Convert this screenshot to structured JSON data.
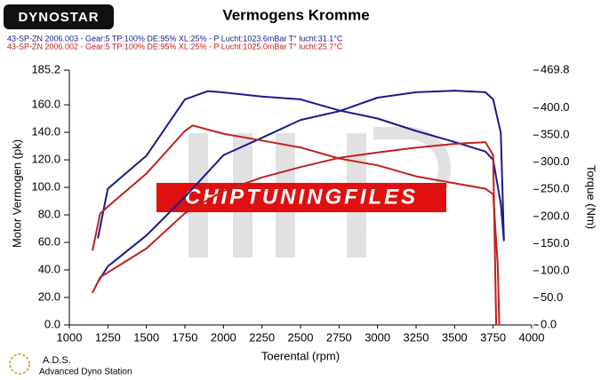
{
  "chart_data": {
    "type": "line",
    "title": "Vermogens Kromme",
    "logo": "DYNOSTAR",
    "legend": [
      {
        "text": "43-SP-ZN 2006.003 - Gear:5 TP:100% DE:95% XL:25%   - P Lucht:1023.6mBar T° lucht:31.1°C",
        "color": "#1a1a8c"
      },
      {
        "text": "43-SP-ZN 2006.002 - Gear:5 TP:100% DE:95% XL:25%   - P Lucht:1025.0mBar T° lucht:25.7°C",
        "color": "#c0201e"
      }
    ],
    "y_label": "Motor Vermogen (pk)",
    "y2_label": "Torque (Nm)",
    "x_label": "Toerental (rpm)",
    "watermark": "CHIPTUNINGFILES",
    "footer": {
      "short": "A.D.S.",
      "long": "Advanced Dyno Station"
    },
    "xlim": [
      1000,
      4000
    ],
    "xticks": [
      1000,
      1250,
      1500,
      1750,
      2000,
      2250,
      2500,
      2750,
      3000,
      3250,
      3500,
      3750,
      4000
    ],
    "ylim": [
      0,
      185.2
    ],
    "yticks": [
      {
        "value": 0,
        "label": "0.0"
      },
      {
        "value": 20,
        "label": "20.0"
      },
      {
        "value": 40,
        "label": "40.0"
      },
      {
        "value": 60,
        "label": "60.0"
      },
      {
        "value": 80,
        "label": "80.0"
      },
      {
        "value": 100,
        "label": "100.0"
      },
      {
        "value": 120,
        "label": "120.0"
      },
      {
        "value": 140,
        "label": "140.0"
      },
      {
        "value": 160,
        "label": "160.0"
      },
      {
        "value": 185.2,
        "label": "185.2"
      }
    ],
    "y2lim": [
      0,
      469.8
    ],
    "y2ticks": [
      {
        "value": 0,
        "label": "0.0"
      },
      {
        "value": 50,
        "label": "50.0"
      },
      {
        "value": 100,
        "label": "100.0"
      },
      {
        "value": 150,
        "label": "150.0"
      },
      {
        "value": 200,
        "label": "200.0"
      },
      {
        "value": 250,
        "label": "250.0"
      },
      {
        "value": 300,
        "label": "300.0"
      },
      {
        "value": 350,
        "label": "350.0"
      },
      {
        "value": 400,
        "label": "400.0"
      },
      {
        "value": 469.8,
        "label": "469.8"
      }
    ],
    "series": [
      {
        "color": "#1a1a8c",
        "axis": "y",
        "x": [
          1185,
          1250,
          1500,
          1750,
          1900,
          2000,
          2250,
          2500,
          2750,
          3000,
          3250,
          3500,
          3700,
          3750,
          3800,
          3820
        ],
        "values": [
          63,
          99,
          123,
          164,
          170,
          169,
          166,
          164,
          156,
          150,
          141,
          133,
          126,
          120,
          88,
          61
        ]
      },
      {
        "color": "#1a1a8c",
        "axis": "y2",
        "x": [
          1185,
          1250,
          1500,
          1750,
          2000,
          2250,
          2500,
          2750,
          3000,
          3250,
          3500,
          3700,
          3750,
          3800,
          3820
        ],
        "values": [
          79,
          108,
          165,
          236,
          313,
          345,
          378,
          394,
          419,
          429,
          432,
          429,
          416,
          354,
          157
        ]
      },
      {
        "color": "#c0201e",
        "axis": "y",
        "x": [
          1150,
          1200,
          1250,
          1500,
          1750,
          1800,
          2000,
          2250,
          2500,
          2750,
          3000,
          3250,
          3500,
          3700,
          3750,
          3780,
          3790
        ],
        "values": [
          54,
          81,
          86,
          110,
          141,
          145,
          139,
          134,
          129,
          121,
          116,
          108,
          103,
          99,
          95,
          43,
          0
        ]
      },
      {
        "color": "#c0201e",
        "axis": "y2",
        "x": [
          1150,
          1200,
          1500,
          1750,
          2000,
          2250,
          2500,
          2750,
          3000,
          3250,
          3500,
          3700,
          3750,
          3770
        ],
        "values": [
          59,
          88,
          141,
          206,
          247,
          272,
          291,
          308,
          318,
          327,
          334,
          337,
          313,
          0
        ]
      }
    ]
  }
}
